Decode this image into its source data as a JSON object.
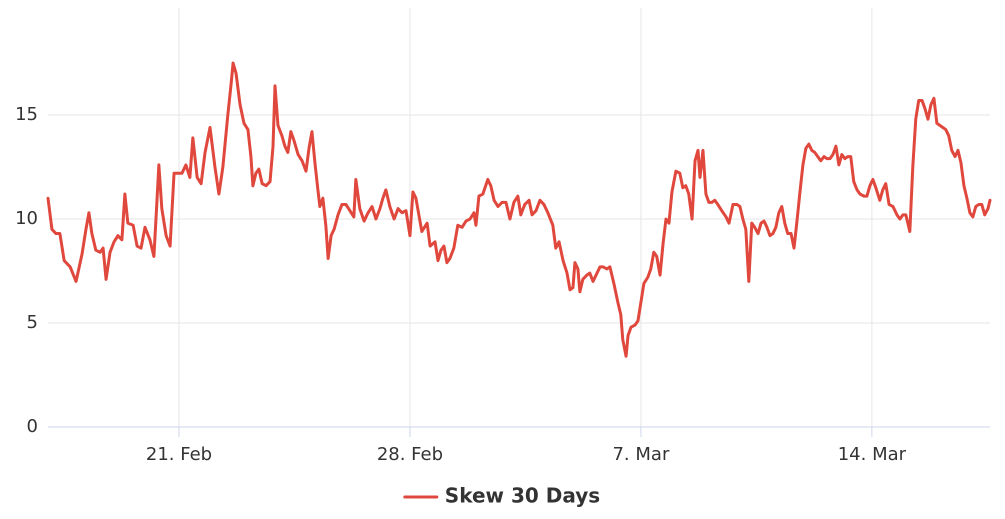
{
  "chart_data": {
    "type": "line",
    "xlim": [
      48.03,
      76.58
    ],
    "xticks": [
      {
        "value": 52,
        "label": "21. Feb"
      },
      {
        "value": 59,
        "label": "28. Feb"
      },
      {
        "value": 66,
        "label": "7. Mar"
      },
      {
        "value": 73,
        "label": "14. Mar"
      }
    ],
    "ylim": [
      0,
      20
    ],
    "yticks": [
      0,
      5,
      10,
      15
    ],
    "grid": true,
    "legend": "bottom",
    "x": [
      48.03,
      48.15,
      48.27,
      48.39,
      48.52,
      48.7,
      48.88,
      49.06,
      49.18,
      49.27,
      49.36,
      49.48,
      49.61,
      49.7,
      49.79,
      49.91,
      50.03,
      50.15,
      50.27,
      50.36,
      50.45,
      50.61,
      50.73,
      50.85,
      50.97,
      51.12,
      51.24,
      51.33,
      51.39,
      51.48,
      51.61,
      51.73,
      51.85,
      51.97,
      52.09,
      52.21,
      52.33,
      52.42,
      52.55,
      52.67,
      52.79,
      52.94,
      53.09,
      53.21,
      53.33,
      53.48,
      53.58,
      53.64,
      53.73,
      53.85,
      53.97,
      54.09,
      54.18,
      54.24,
      54.33,
      54.42,
      54.52,
      54.64,
      54.76,
      54.85,
      54.91,
      55.0,
      55.12,
      55.21,
      55.3,
      55.39,
      55.48,
      55.61,
      55.73,
      55.85,
      55.94,
      56.03,
      56.12,
      56.21,
      56.27,
      56.36,
      56.45,
      56.52,
      56.61,
      56.7,
      56.82,
      56.94,
      57.06,
      57.18,
      57.3,
      57.36,
      57.48,
      57.61,
      57.73,
      57.85,
      57.97,
      58.09,
      58.18,
      58.27,
      58.39,
      58.52,
      58.64,
      58.76,
      58.88,
      59.0,
      59.09,
      59.18,
      59.27,
      59.36,
      59.52,
      59.61,
      59.76,
      59.85,
      59.94,
      60.03,
      60.12,
      60.21,
      60.33,
      60.45,
      60.58,
      60.7,
      60.82,
      60.94,
      61.0,
      61.09,
      61.21,
      61.36,
      61.45,
      61.55,
      61.67,
      61.79,
      61.91,
      62.03,
      62.15,
      62.27,
      62.36,
      62.48,
      62.61,
      62.7,
      62.82,
      62.94,
      63.06,
      63.18,
      63.33,
      63.42,
      63.52,
      63.64,
      63.76,
      63.85,
      63.94,
      64.0,
      64.09,
      64.15,
      64.24,
      64.36,
      64.45,
      64.55,
      64.64,
      64.76,
      64.85,
      64.97,
      65.06,
      65.18,
      65.3,
      65.39,
      65.45,
      65.55,
      65.61,
      65.7,
      65.82,
      65.91,
      66.0,
      66.09,
      66.21,
      66.3,
      66.39,
      66.48,
      66.58,
      66.67,
      66.76,
      66.85,
      66.94,
      67.06,
      67.18,
      67.27,
      67.36,
      67.45,
      67.55,
      67.64,
      67.73,
      67.79,
      67.88,
      67.97,
      68.06,
      68.15,
      68.24,
      68.33,
      68.45,
      68.58,
      68.67,
      68.79,
      68.91,
      69.0,
      69.09,
      69.18,
      69.27,
      69.36,
      69.45,
      69.55,
      69.64,
      69.73,
      69.82,
      69.91,
      70.0,
      70.09,
      70.18,
      70.27,
      70.36,
      70.45,
      70.55,
      70.64,
      70.73,
      70.82,
      70.91,
      71.0,
      71.09,
      71.18,
      71.27,
      71.36,
      71.45,
      71.55,
      71.64,
      71.73,
      71.82,
      71.91,
      72.0,
      72.09,
      72.18,
      72.27,
      72.36,
      72.45,
      72.55,
      72.64,
      72.76,
      72.85,
      72.94,
      73.03,
      73.12,
      73.24,
      73.33,
      73.42,
      73.52,
      73.64,
      73.76,
      73.85,
      73.94,
      74.03,
      74.15,
      74.24,
      74.33,
      74.42,
      74.52,
      74.61,
      74.7,
      74.79,
      74.88,
      74.97,
      75.06,
      75.15,
      75.24,
      75.33,
      75.42,
      75.52,
      75.61,
      75.7,
      75.79,
      75.88,
      75.97,
      76.06,
      76.15,
      76.24,
      76.33,
      76.42,
      76.52,
      76.58
    ],
    "series": [
      {
        "name": "Skew 30 Days",
        "color": "#e0483d",
        "values": [
          11.0,
          9.5,
          9.3,
          9.3,
          8.0,
          7.7,
          7.0,
          8.3,
          9.5,
          10.3,
          9.3,
          8.5,
          8.4,
          8.6,
          7.1,
          8.4,
          8.9,
          9.2,
          9.0,
          11.2,
          9.8,
          9.7,
          8.7,
          8.6,
          9.6,
          9.0,
          8.2,
          10.8,
          12.6,
          10.5,
          9.2,
          8.7,
          12.2,
          12.2,
          12.2,
          12.6,
          12.0,
          13.9,
          12.0,
          11.7,
          13.2,
          14.4,
          12.5,
          11.2,
          12.5,
          15.0,
          16.5,
          17.5,
          17.0,
          15.5,
          14.6,
          14.3,
          13.0,
          11.6,
          12.2,
          12.4,
          11.7,
          11.6,
          11.8,
          13.5,
          16.4,
          14.5,
          14.0,
          13.5,
          13.2,
          14.2,
          13.8,
          13.1,
          12.8,
          12.3,
          13.4,
          14.2,
          12.7,
          11.4,
          10.6,
          11.0,
          9.7,
          8.1,
          9.2,
          9.5,
          10.2,
          10.7,
          10.7,
          10.4,
          10.1,
          11.9,
          10.5,
          9.9,
          10.3,
          10.6,
          10.0,
          10.5,
          11.0,
          11.4,
          10.6,
          10.0,
          10.5,
          10.3,
          10.4,
          9.2,
          11.3,
          11.0,
          10.2,
          9.4,
          9.8,
          8.7,
          8.9,
          8.0,
          8.5,
          8.7,
          7.9,
          8.1,
          8.6,
          9.7,
          9.6,
          9.9,
          10.0,
          10.3,
          9.7,
          11.1,
          11.2,
          11.9,
          11.6,
          10.9,
          10.6,
          10.8,
          10.8,
          10.0,
          10.8,
          11.1,
          10.2,
          10.7,
          10.9,
          10.2,
          10.4,
          10.9,
          10.7,
          10.3,
          9.7,
          8.6,
          8.9,
          8.0,
          7.4,
          6.6,
          6.7,
          7.9,
          7.6,
          6.5,
          7.1,
          7.3,
          7.4,
          7.0,
          7.3,
          7.7,
          7.7,
          7.6,
          7.7,
          6.9,
          6.0,
          5.4,
          4.2,
          3.4,
          4.4,
          4.8,
          4.9,
          5.1,
          6.0,
          6.9,
          7.2,
          7.6,
          8.4,
          8.2,
          7.3,
          8.8,
          10.0,
          9.8,
          11.3,
          12.3,
          12.2,
          11.5,
          11.6,
          11.2,
          10.0,
          12.8,
          13.3,
          12.0,
          13.3,
          11.2,
          10.8,
          10.8,
          10.9,
          10.7,
          10.4,
          10.1,
          9.8,
          10.7,
          10.7,
          10.6,
          10.0,
          9.5,
          7.0,
          9.8,
          9.6,
          9.3,
          9.8,
          9.9,
          9.6,
          9.2,
          9.3,
          9.6,
          10.3,
          10.6,
          9.8,
          9.3,
          9.3,
          8.6,
          9.9,
          11.3,
          12.6,
          13.4,
          13.6,
          13.3,
          13.2,
          13.0,
          12.8,
          13.0,
          12.9,
          12.9,
          13.1,
          13.5,
          12.6,
          13.1,
          12.9,
          13.0,
          13.0,
          11.8,
          11.4,
          11.2,
          11.1,
          11.1,
          11.6,
          11.9,
          11.5,
          10.9,
          11.4,
          11.7,
          10.7,
          10.6,
          10.2,
          10.0,
          10.2,
          10.2,
          9.4,
          12.5,
          14.8,
          15.7,
          15.7,
          15.3,
          14.8,
          15.5,
          15.8,
          14.6,
          14.5,
          14.4,
          14.3,
          14.0,
          13.3,
          13.0,
          13.3,
          12.7,
          11.6,
          11.0,
          10.3,
          10.1,
          10.6,
          10.7,
          10.7,
          10.2,
          10.5,
          10.9
        ]
      }
    ]
  }
}
